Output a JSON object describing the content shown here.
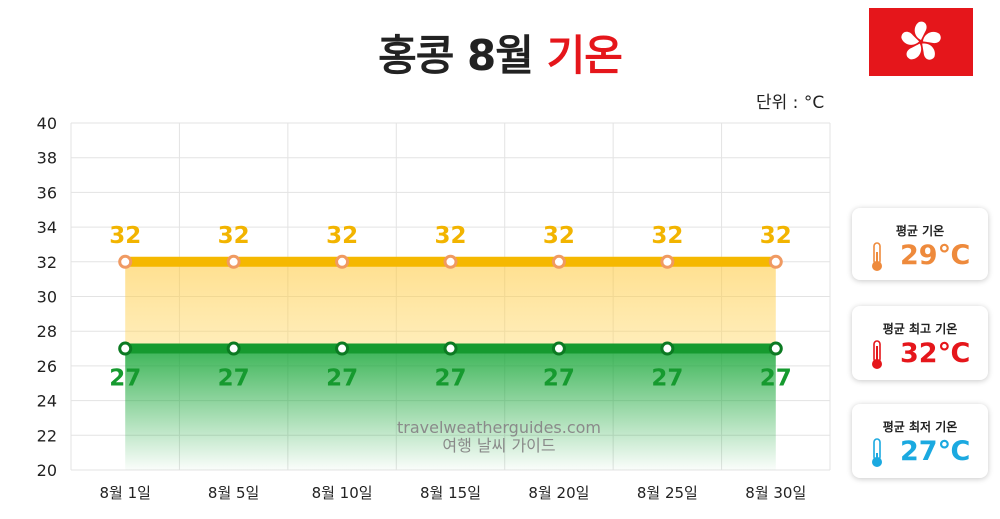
{
  "title": {
    "prefix": "홍콩 8월",
    "highlight": "기온"
  },
  "unit_label": "단위 : °C",
  "watermark": {
    "line1": "travelweatherguides.com",
    "line2": "여행 날씨 가이드"
  },
  "cards": [
    {
      "label": "평균 기온",
      "value": "29℃",
      "color": "#ee8a3c",
      "icon": "thermometer-icon"
    },
    {
      "label": "평균 최고 기온",
      "value": "32℃",
      "color": "#e5161b",
      "icon": "thermometer-icon"
    },
    {
      "label": "평균 최저 기온",
      "value": "27℃",
      "color": "#1ba9e0",
      "icon": "thermometer-icon"
    }
  ],
  "flag": {
    "color": "#e5161b",
    "icon": "bauhinia-flower-icon"
  },
  "chart_data": {
    "type": "line",
    "categories": [
      "8월 1일",
      "8월 5일",
      "8월 10일",
      "8월 15일",
      "8월 20일",
      "8월 25일",
      "8월 30일"
    ],
    "series": [
      {
        "values": [
          32,
          32,
          32,
          32,
          32,
          32,
          32
        ],
        "color": "#f5b800",
        "marker_color": "#f09a62",
        "label_color": "#f2b400"
      },
      {
        "values": [
          27,
          27,
          27,
          27,
          27,
          27,
          27
        ],
        "color": "#169a2f",
        "marker_color": "#0c7a22",
        "label_color": "#169a2f"
      }
    ],
    "ylim": [
      20,
      40
    ],
    "yticks": [
      20,
      22,
      24,
      26,
      28,
      30,
      32,
      34,
      36,
      38,
      40
    ],
    "grid": true
  }
}
